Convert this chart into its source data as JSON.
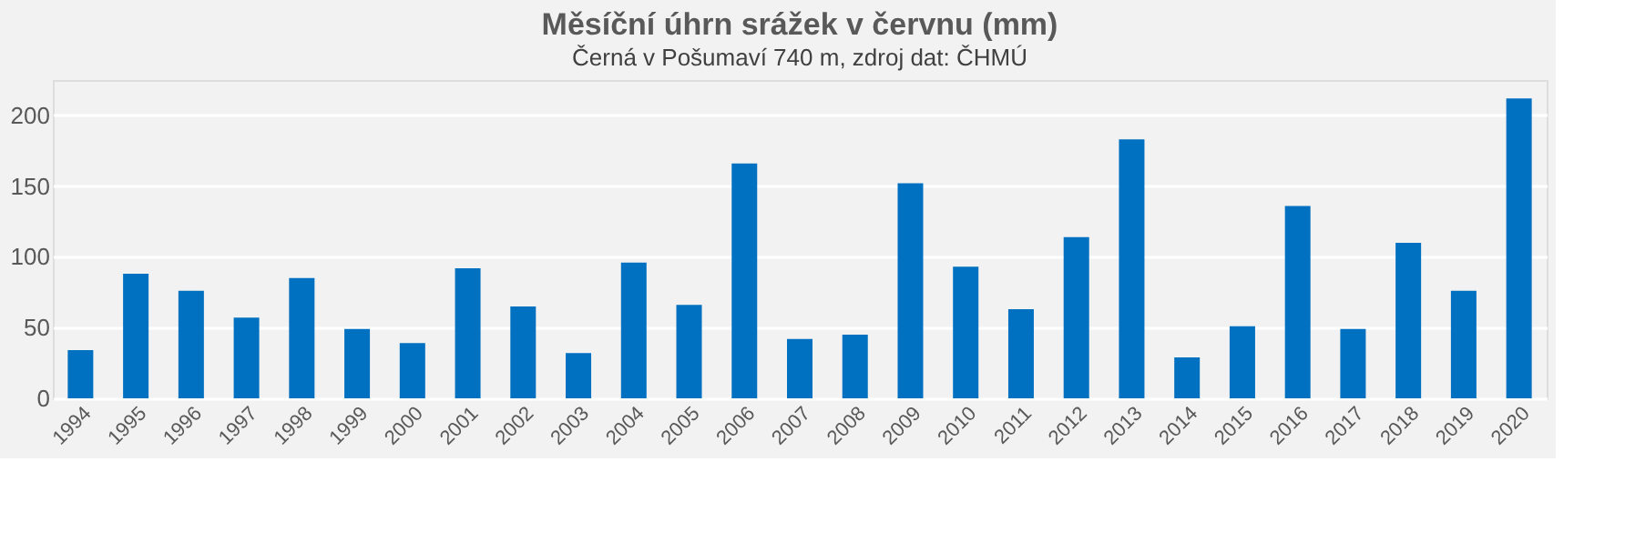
{
  "chart_data": {
    "type": "bar",
    "title": "Měsíční úhrn srážek v červnu (mm)",
    "subtitle": "Černá v Pošumaví 740 m, zdroj dat: ČHMÚ",
    "categories": [
      "1994",
      "1995",
      "1996",
      "1997",
      "1998",
      "1999",
      "2000",
      "2001",
      "2002",
      "2003",
      "2004",
      "2005",
      "2006",
      "2007",
      "2008",
      "2009",
      "2010",
      "2011",
      "2012",
      "2013",
      "2014",
      "2015",
      "2016",
      "2017",
      "2018",
      "2019",
      "2020"
    ],
    "values": [
      34,
      88,
      76,
      57,
      85,
      49,
      39,
      92,
      65,
      32,
      96,
      66,
      166,
      42,
      45,
      152,
      93,
      63,
      114,
      183,
      29,
      51,
      136,
      49,
      110,
      76,
      212
    ],
    "color": "#0070c0",
    "ylim": [
      0,
      225
    ],
    "yticks": [
      0,
      50,
      100,
      150,
      200
    ],
    "grid": "y"
  }
}
